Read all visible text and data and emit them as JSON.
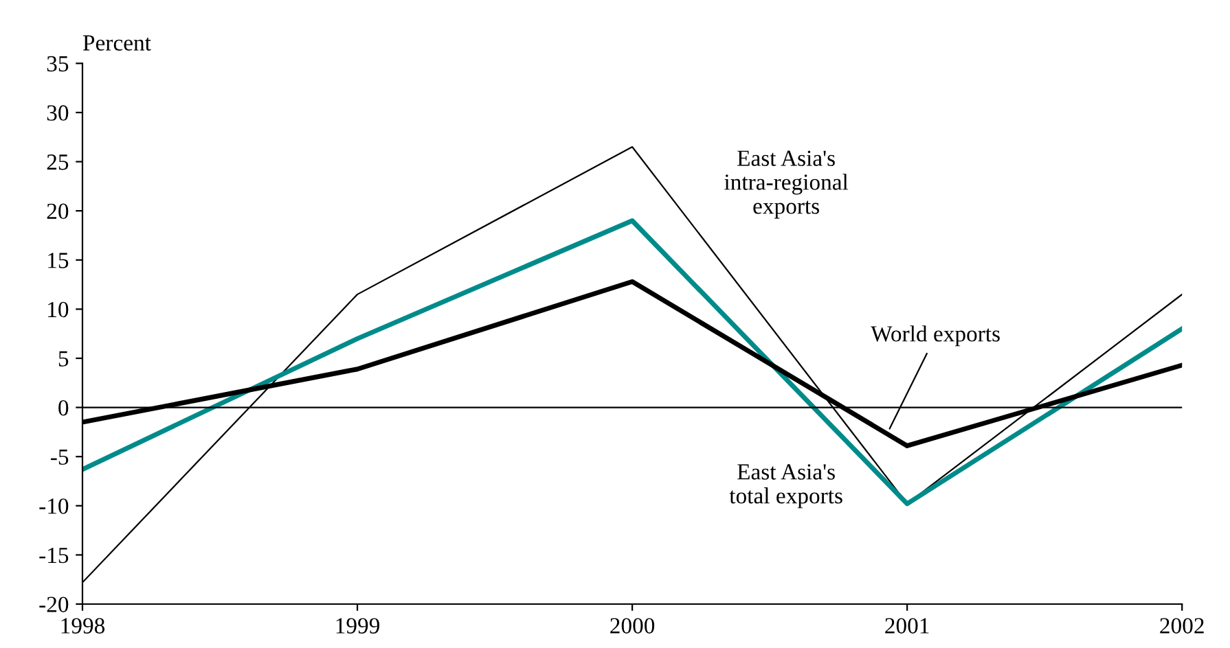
{
  "chart_data": {
    "type": "line",
    "ylabel": "Percent",
    "x": [
      1998,
      1999,
      2000,
      2001,
      2002
    ],
    "series": [
      {
        "color": "#000000",
        "values": [
          -17.8,
          11.5,
          26.5,
          -9.8,
          11.5
        ]
      },
      {
        "color": "#008b8b",
        "values": [
          -6.3,
          7,
          19,
          -9.8,
          8
        ]
      },
      {
        "color": "#000000",
        "values": [
          -1.5,
          3.9,
          12.8,
          -3.9,
          4.3
        ]
      }
    ],
    "xlim": [
      1998,
      2002
    ],
    "xticks": [
      1998,
      1999,
      2000,
      2001,
      2002
    ],
    "ylim": [
      -20,
      35
    ],
    "yticks": [
      -20,
      -15,
      -10,
      -5,
      0,
      5,
      10,
      15,
      20,
      25,
      30,
      35
    ],
    "ref_lines": [
      {
        "axis": "y",
        "value": 0,
        "color": "#000000"
      }
    ],
    "annotations": [
      "East Asia's\nintra-regional\nexports",
      {
        "text": "World exports",
        "x": 2000.93,
        "y": -2.5
      },
      "East Asia's\ntotal exports"
    ],
    "grid": false,
    "legend": false,
    "marker": "none",
    "line_style": "solid"
  }
}
